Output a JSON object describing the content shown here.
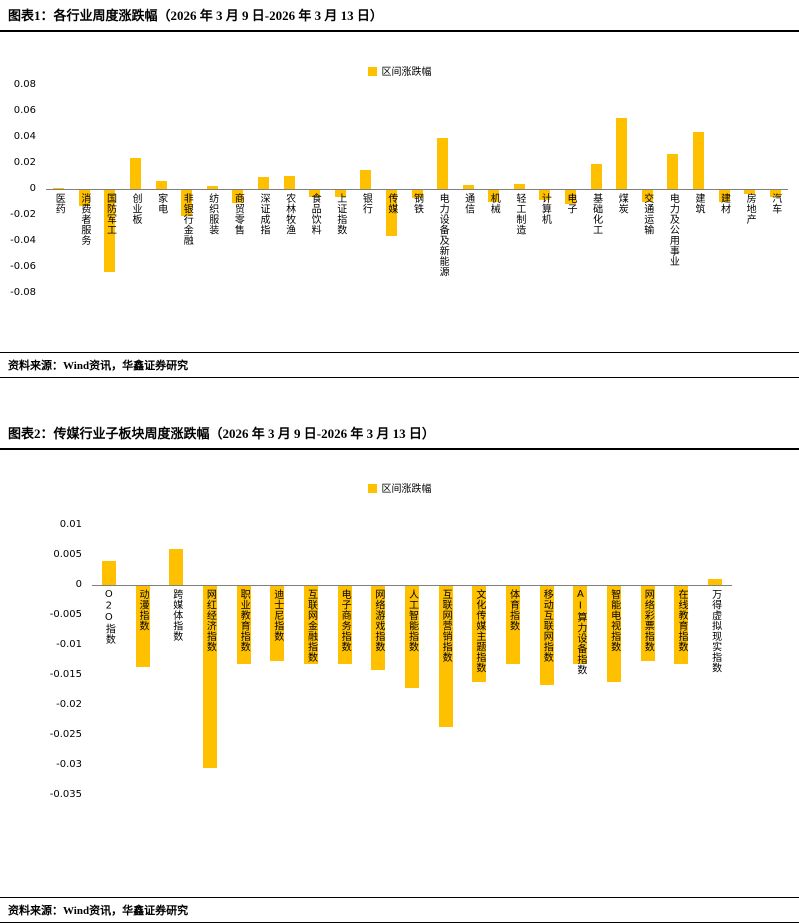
{
  "figure1": {
    "title": "图表1：各行业周度涨跌幅（2026 年 3 月 9 日-2026 年 3 月 13 日）",
    "source": "资料来源：Wind资讯，华鑫证券研究"
  },
  "figure2": {
    "title": "图表2：传媒行业子板块周度涨跌幅（2026 年 3 月 9 日-2026 年 3 月 13 日）",
    "source": "资料来源：Wind资讯，华鑫证券研究"
  },
  "chart_data": [
    {
      "type": "bar",
      "title": "各行业周度涨跌幅（2026年3月9日-2026年3月13日）",
      "legend": "区间涨跌幅",
      "bar_color": "#FFC000",
      "xlabel": "",
      "ylabel": "",
      "ylim": [
        -0.08,
        0.08
      ],
      "yticks": [
        0.08,
        0.06,
        0.04,
        0.02,
        0,
        -0.02,
        -0.04,
        -0.06,
        -0.08
      ],
      "ytick_labels": [
        "0.08",
        "0.06",
        "0.04",
        "0.02",
        "0",
        "-0.02",
        "-0.04",
        "-0.06",
        "-0.08"
      ],
      "grid": false,
      "legend_position": "top-center",
      "categories": [
        "医药",
        "消费者服务",
        "国防军工",
        "创业板",
        "家电",
        "非银行金融",
        "纺织服装",
        "商贸零售",
        "深证成指",
        "农林牧渔",
        "食品饮料",
        "上证指数",
        "银行",
        "传媒",
        "钢铁",
        "电力设备及新能源",
        "通信",
        "机械",
        "轻工制造",
        "计算机",
        "电子",
        "基础化工",
        "煤炭",
        "交通运输",
        "电力及公用事业",
        "建筑",
        "建材",
        "房地产",
        "汽车"
      ],
      "values": [
        0.001,
        -0.012,
        -0.063,
        0.024,
        0.006,
        -0.02,
        0.002,
        -0.01,
        0.009,
        0.01,
        -0.005,
        -0.005,
        0.015,
        -0.035,
        -0.006,
        0.039,
        0.003,
        -0.009,
        0.004,
        -0.008,
        -0.011,
        0.019,
        0.055,
        -0.009,
        0.027,
        0.044,
        -0.009,
        -0.003,
        -0.005
      ]
    },
    {
      "type": "bar",
      "title": "传媒行业子板块周度涨跌幅（2026年3月9日-2026年3月13日）",
      "legend": "区间涨跌幅",
      "bar_color": "#FFC000",
      "xlabel": "",
      "ylabel": "",
      "ylim": [
        -0.035,
        0.01
      ],
      "yticks": [
        0.01,
        0.005,
        0,
        -0.005,
        -0.01,
        -0.015,
        -0.02,
        -0.025,
        -0.03,
        -0.035
      ],
      "ytick_labels": [
        "0.01",
        "0.005",
        "0",
        "-0.005",
        "-0.01",
        "-0.015",
        "-0.02",
        "-0.025",
        "-0.03",
        "-0.035"
      ],
      "grid": false,
      "legend_position": "top-center",
      "categories": [
        "O2O指数",
        "动漫指数",
        "跨媒体指数",
        "网红经济指数",
        "职业教育指数",
        "迪士尼指数",
        "互联网金融指数",
        "电子商务指数",
        "网络游戏指数",
        "人工智能指数",
        "互联网营销指数",
        "文化传媒主题指数",
        "体育指数",
        "移动互联网指数",
        "AI算力设备指数",
        "智能电视指数",
        "网络彩票指数",
        "在线教育指数",
        "万得虚拟现实指数"
      ],
      "values": [
        0.004,
        -0.0135,
        0.006,
        -0.0303,
        -0.013,
        -0.0125,
        -0.013,
        -0.013,
        -0.014,
        -0.017,
        -0.0235,
        -0.016,
        -0.013,
        -0.0165,
        -0.013,
        -0.016,
        -0.0125,
        -0.013,
        0.001
      ]
    }
  ]
}
